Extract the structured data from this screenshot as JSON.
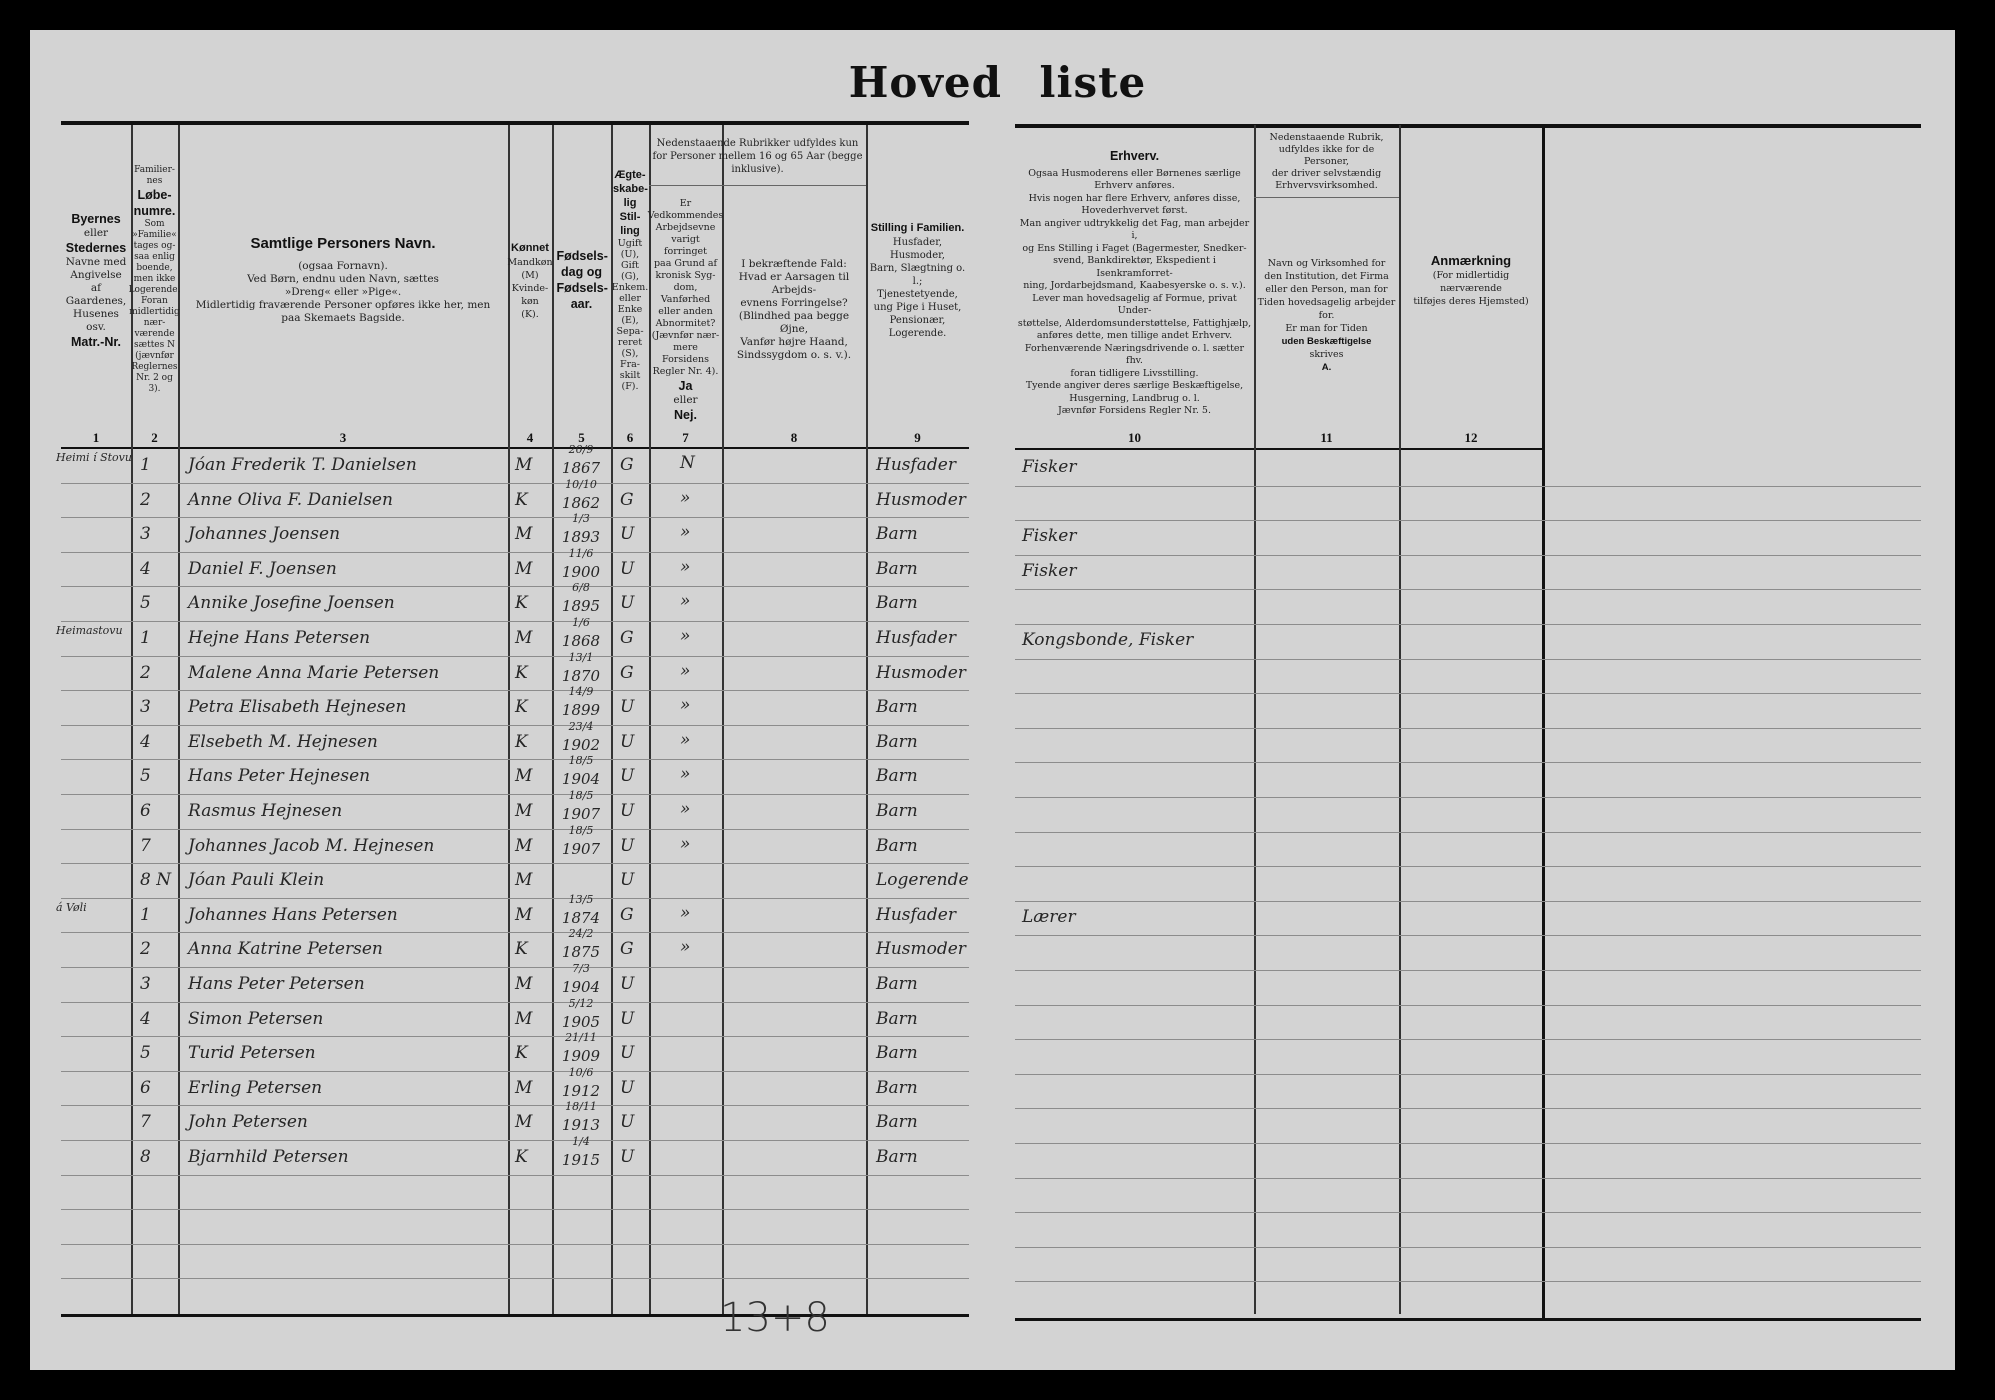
{
  "title": "Hoved liste",
  "header": {
    "col1": {
      "lines": [
        "Byernes",
        "eller",
        "Stedernes",
        "Navne med",
        "Angivelse",
        "af",
        "Gaardenes,",
        "Husenes osv.",
        "Matr.-Nr."
      ],
      "number": "1"
    },
    "col2": {
      "lines": [
        "Familier-",
        "nes",
        "Løbe-",
        "numre.",
        "Som",
        "»Familie«",
        "tages og-",
        "saa enlig",
        "boende,",
        "men ikke",
        "Logerende.",
        "Foran",
        "midlertidig",
        "nær-",
        "værende",
        "sættes N",
        "(jævnfør",
        "Reglernes",
        "Nr. 2 og 3)."
      ],
      "number": "2"
    },
    "col3": {
      "title": "Samtlige Personers Navn.",
      "sub": "(ogsaa Fornavn).",
      "line1": "Ved Børn, endnu uden Navn, sættes",
      "line2": "»Dreng« eller »Pige«.",
      "line3": "Midlertidig fraværende Personer opføres ikke her, men",
      "line4": "paa Skemaets Bagside.",
      "number": "3"
    },
    "col4": {
      "title": "Kønnet",
      "lines": [
        "Mandkøn",
        "(M)",
        "Kvinde-",
        "køn",
        "(K)."
      ],
      "number": "4"
    },
    "col5": {
      "title": "Fødsels-dag og Fødsels-aar.",
      "number": "5"
    },
    "col6": {
      "title": "Ægte-skabe-lig Stil-ling",
      "lines": [
        "Ugift",
        "(U),",
        "Gift",
        "(G),",
        "Enkem.",
        "eller",
        "Enke",
        "(E),",
        "Sepa-",
        "reret",
        "(S),",
        "Fra-",
        "skilt",
        "(F)."
      ],
      "number": "6"
    },
    "group78": "Nedenstaaende Rubrikker udfyldes kun for Personer mellem 16 og 65 Aar (begge inklusive).",
    "col7": {
      "lines": [
        "Er",
        "Vedkommendes",
        "Arbejdsevne",
        "varigt forringet",
        "paa Grund af",
        "kronisk Syg-",
        "dom, Vanførhed",
        "eller anden",
        "Abnormitet?",
        "(Jævnfør nær-",
        "mere Forsidens",
        "Regler Nr. 4)."
      ],
      "yes": "Ja",
      "or": "eller",
      "no": "Nej.",
      "number": "7"
    },
    "col8": {
      "lines": [
        "I bekræftende Fald:",
        "Hvad er Aarsagen til Arbejds-",
        "evnens Forringelse?",
        "(Blindhed paa begge Øjne,",
        "Vanfør højre Haand,",
        "Sindssygdom o. s. v.)."
      ],
      "number": "8"
    },
    "col9": {
      "title": "Stilling i Familien.",
      "lines": [
        "Husfader, Husmoder,",
        "Barn, Slægtning o. l.;",
        "Tjenestetyende,",
        "ung Pige i Huset,",
        "Pensionær,",
        "Logerende."
      ],
      "number": "9"
    },
    "col10": {
      "title": "Erhverv.",
      "lines": [
        "Ogsaa Husmoderens eller Børnenes særlige",
        "Erhverv anføres.",
        "Hvis nogen har flere Erhverv, anføres disse,",
        "Hovederhvervet først.",
        "Man angiver udtrykkelig det Fag, man arbejder i,",
        "og Ens Stilling i Faget (Bagermester, Snedker-",
        "svend, Bankdirektør, Ekspedient i Isenkramforret-",
        "ning, Jordarbejdsmand, Kaabesyerske o. s. v.).",
        "Lever man hovedsagelig af Formue, privat Under-",
        "støttelse, Alderdomsunderstøttelse, Fattighjælp,",
        "anføres dette, men tillige andet Erhverv.",
        "Forhenværende Næringsdrivende o. l. sætter fhv.",
        "foran tidligere Livsstilling.",
        "Tyende angiver deres særlige Beskæftigelse,",
        "Husgerning, Landbrug o. l.",
        "Jævnfør Forsidens Regler Nr. 5."
      ],
      "number": "10"
    },
    "col11": {
      "top": [
        "Nedenstaaende Rubrik,",
        "udfyldes ikke for de Personer,",
        "der driver selvstændig",
        "Erhvervsvirksomhed."
      ],
      "lines": [
        "Navn og Virksomhed for",
        "den Institution, det Firma",
        "eller den Person, man for",
        "Tiden hovedsagelig arbejder",
        "for.",
        "Er man for Tiden",
        "uden Beskæftigelse",
        "skrives",
        "A."
      ],
      "number": "11"
    },
    "col12": {
      "title": "Anmærkning",
      "lines": [
        "(For midlertidig nærværende",
        "tilføjes deres Hjemsted)"
      ],
      "number": "12"
    }
  },
  "rows": [
    {
      "place": "Heimi í Stovu",
      "no": "1",
      "name": "Jóan Frederik T. Danielsen",
      "sex": "M",
      "dm": "20/9",
      "year": "1867",
      "civil": "G",
      "reduced": "N",
      "role": "Husfader",
      "occupation": "Fisker"
    },
    {
      "place": "",
      "no": "2",
      "name": "Anne Oliva F. Danielsen",
      "sex": "K",
      "dm": "10/10",
      "year": "1862",
      "civil": "G",
      "reduced": "»",
      "role": "Husmoder",
      "occupation": ""
    },
    {
      "place": "",
      "no": "3",
      "name": "Johannes Joensen",
      "sex": "M",
      "dm": "1/3",
      "year": "1893",
      "civil": "U",
      "reduced": "»",
      "role": "Barn",
      "occupation": "Fisker"
    },
    {
      "place": "",
      "no": "4",
      "name": "Daniel F. Joensen",
      "sex": "M",
      "dm": "11/6",
      "year": "1900",
      "civil": "U",
      "reduced": "»",
      "role": "Barn",
      "occupation": "Fisker"
    },
    {
      "place": "",
      "no": "5",
      "name": "Annike Josefine Joensen",
      "sex": "K",
      "dm": "6/8",
      "year": "1895",
      "civil": "U",
      "reduced": "»",
      "role": "Barn",
      "occupation": ""
    },
    {
      "place": "Heimastovu",
      "no": "1",
      "name": "Hejne Hans Petersen",
      "sex": "M",
      "dm": "1/6",
      "year": "1868",
      "civil": "G",
      "reduced": "»",
      "role": "Husfader",
      "occupation": "Kongsbonde, Fisker"
    },
    {
      "place": "",
      "no": "2",
      "name": "Malene Anna Marie Petersen",
      "sex": "K",
      "dm": "13/1",
      "year": "1870",
      "civil": "G",
      "reduced": "»",
      "role": "Husmoder",
      "occupation": ""
    },
    {
      "place": "",
      "no": "3",
      "name": "Petra Elisabeth Hejnesen",
      "sex": "K",
      "dm": "14/9",
      "year": "1899",
      "civil": "U",
      "reduced": "»",
      "role": "Barn",
      "occupation": ""
    },
    {
      "place": "",
      "no": "4",
      "name": "Elsebeth M. Hejnesen",
      "sex": "K",
      "dm": "23/4",
      "year": "1902",
      "civil": "U",
      "reduced": "»",
      "role": "Barn",
      "occupation": ""
    },
    {
      "place": "",
      "no": "5",
      "name": "Hans Peter Hejnesen",
      "sex": "M",
      "dm": "18/5",
      "year": "1904",
      "civil": "U",
      "reduced": "»",
      "role": "Barn",
      "occupation": ""
    },
    {
      "place": "",
      "no": "6",
      "name": "Rasmus Hejnesen",
      "sex": "M",
      "dm": "18/5",
      "year": "1907",
      "civil": "U",
      "reduced": "»",
      "role": "Barn",
      "occupation": ""
    },
    {
      "place": "",
      "no": "7",
      "name": "Johannes Jacob M. Hejnesen",
      "sex": "M",
      "dm": "18/5",
      "year": "1907",
      "civil": "U",
      "reduced": "»",
      "role": "Barn",
      "occupation": ""
    },
    {
      "place": "",
      "no": "8 N",
      "name": "Jóan Pauli Klein",
      "sex": "M",
      "dm": "",
      "year": "",
      "civil": "U",
      "reduced": "",
      "role": "Logerende",
      "occupation": ""
    },
    {
      "place": "á Vøli",
      "no": "1",
      "name": "Johannes Hans Petersen",
      "sex": "M",
      "dm": "13/5",
      "year": "1874",
      "civil": "G",
      "reduced": "»",
      "role": "Husfader",
      "occupation": "Lærer"
    },
    {
      "place": "",
      "no": "2",
      "name": "Anna Katrine Petersen",
      "sex": "K",
      "dm": "24/2",
      "year": "1875",
      "civil": "G",
      "reduced": "»",
      "role": "Husmoder",
      "occupation": ""
    },
    {
      "place": "",
      "no": "3",
      "name": "Hans Peter Petersen",
      "sex": "M",
      "dm": "7/3",
      "year": "1904",
      "civil": "U",
      "reduced": "",
      "role": "Barn",
      "occupation": ""
    },
    {
      "place": "",
      "no": "4",
      "name": "Simon Petersen",
      "sex": "M",
      "dm": "5/12",
      "year": "1905",
      "civil": "U",
      "reduced": "",
      "role": "Barn",
      "occupation": ""
    },
    {
      "place": "",
      "no": "5",
      "name": "Turid Petersen",
      "sex": "K",
      "dm": "21/11",
      "year": "1909",
      "civil": "U",
      "reduced": "",
      "role": "Barn",
      "occupation": ""
    },
    {
      "place": "",
      "no": "6",
      "name": "Erling Petersen",
      "sex": "M",
      "dm": "10/6",
      "year": "1912",
      "civil": "U",
      "reduced": "",
      "role": "Barn",
      "occupation": ""
    },
    {
      "place": "",
      "no": "7",
      "name": "John Petersen",
      "sex": "M",
      "dm": "18/11",
      "year": "1913",
      "civil": "U",
      "reduced": "",
      "role": "Barn",
      "occupation": ""
    },
    {
      "place": "",
      "no": "8",
      "name": "Bjarnhild Petersen",
      "sex": "K",
      "dm": "1/4",
      "year": "1915",
      "civil": "U",
      "reduced": "",
      "role": "Barn",
      "occupation": ""
    }
  ],
  "footer_note": "13+8"
}
